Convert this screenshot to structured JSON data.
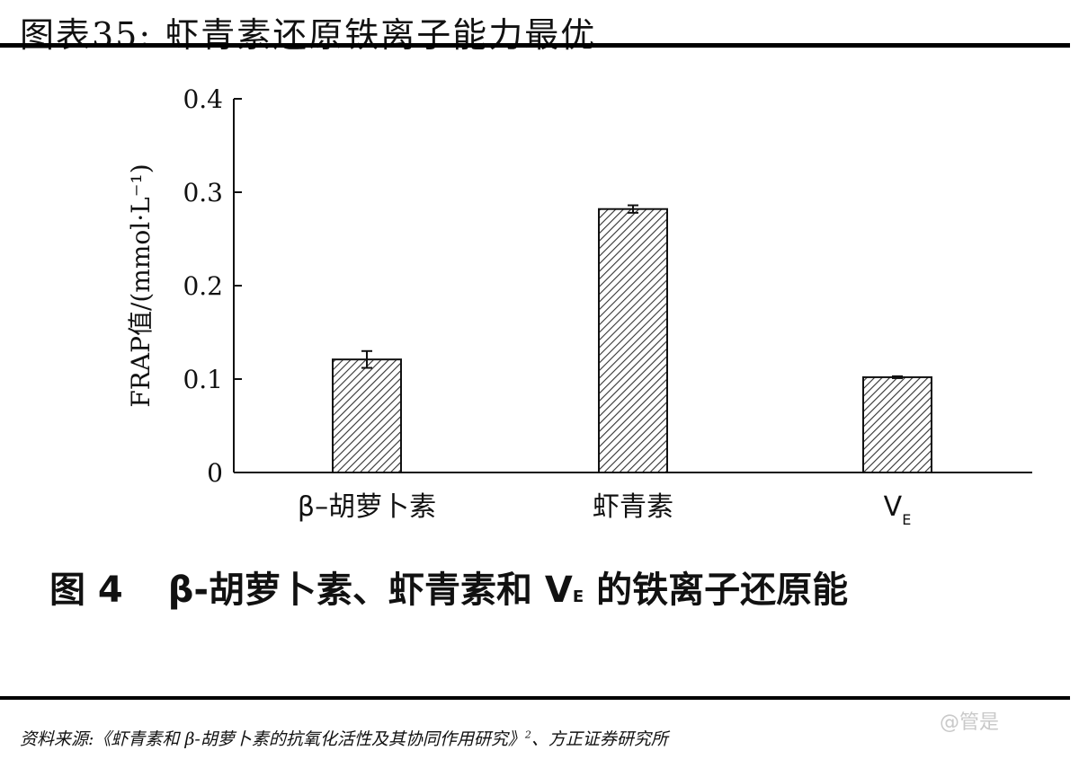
{
  "header": {
    "title": "图表35:   虾青素还原铁离子能力最优"
  },
  "caption": {
    "figure_no": "图 4",
    "text_before": "β-胡萝卜素、虾青素和 V",
    "subscript": "E",
    "text_after": " 的铁离子还原能"
  },
  "source": {
    "text": "资料来源:《虾青素和 β-胡萝卜素的抗氧化活性及其协同作用研究》",
    "superscript": "2",
    "suffix": "、方正证券研究所"
  },
  "watermark": {
    "text": "@管是"
  },
  "chart_data": {
    "type": "bar",
    "ylabel": "FRAP值/(mmol·L⁻¹)",
    "xlabel": "",
    "ylim": [
      0,
      0.4
    ],
    "yticks": [
      {
        "value": 0,
        "label": "0"
      },
      {
        "value": 0.1,
        "label": "0.1"
      },
      {
        "value": 0.2,
        "label": "0.2"
      },
      {
        "value": 0.3,
        "label": "0.3"
      },
      {
        "value": 0.4,
        "label": "0.4"
      }
    ],
    "categories": [
      {
        "label": "β–胡萝卜素",
        "sub": ""
      },
      {
        "label": "虾青素",
        "sub": ""
      },
      {
        "label": "V",
        "sub": "E"
      }
    ],
    "values": [
      0.121,
      0.282,
      0.102
    ],
    "errors": [
      0.009,
      0.004,
      0.001
    ],
    "grid": false,
    "legend": "none",
    "bar_pattern": "diagonal-hatch",
    "colors": {
      "bar_stroke": "#111111",
      "hatch": "#333333"
    }
  }
}
